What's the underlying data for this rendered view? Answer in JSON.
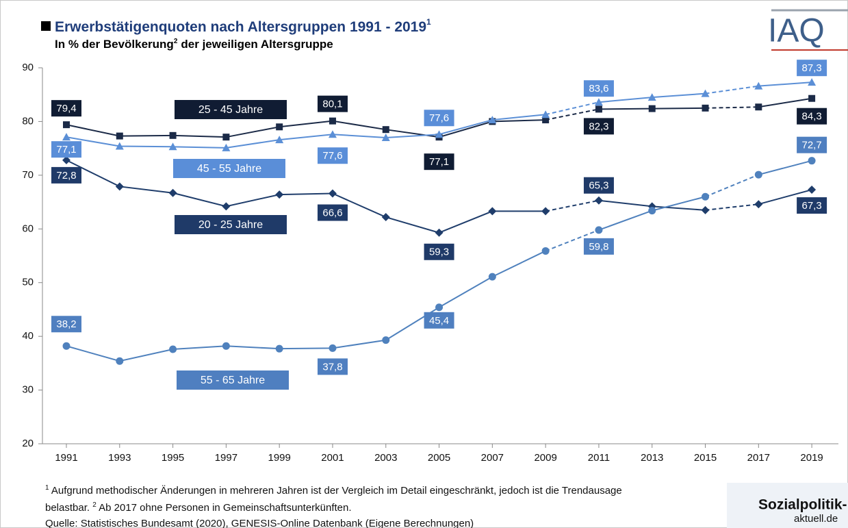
{
  "chart_data": {
    "type": "line",
    "title": "Erwerbstätigenquoten nach Altersgruppen 1991 - 2019",
    "title_sup": "1",
    "subtitle": [
      "In % der Bevölkerung",
      "2",
      "der jeweiligen Altersgruppe"
    ],
    "x": [
      1991,
      1993,
      1995,
      1997,
      1999,
      2001,
      2003,
      2005,
      2007,
      2009,
      2011,
      2013,
      2015,
      2017,
      2019
    ],
    "xlim": [
      1990.1,
      2020
    ],
    "xticks": [
      1991,
      1993,
      1995,
      1997,
      1999,
      2001,
      2003,
      2005,
      2007,
      2009,
      2011,
      2013,
      2015,
      2017,
      2019
    ],
    "ylim": [
      20,
      90
    ],
    "yticks": [
      20,
      30,
      40,
      50,
      60,
      70,
      80,
      90
    ],
    "grid": false,
    "dashed_segments": [
      9,
      12
    ],
    "series": [
      {
        "name": "25 - 45 Jahre",
        "color": "#1b2a47",
        "label_color": "#101c33",
        "marker": "square",
        "values": [
          79.4,
          77.3,
          77.4,
          77.1,
          79.0,
          80.1,
          78.5,
          77.1,
          80.0,
          80.3,
          82.3,
          82.4,
          82.5,
          82.7,
          84.3
        ],
        "value_labels": [
          "79,4",
          null,
          null,
          null,
          null,
          "80,1",
          null,
          "77,1",
          null,
          null,
          "82,3",
          null,
          null,
          null,
          "84,3"
        ]
      },
      {
        "name": "45 - 55 Jahre",
        "color": "#5b8fd6",
        "label_color": "#5a8ed8",
        "marker": "triangle",
        "values": [
          77.1,
          75.4,
          75.3,
          75.1,
          76.6,
          77.6,
          77.0,
          77.6,
          80.3,
          81.3,
          83.6,
          84.5,
          85.2,
          86.6,
          87.3
        ],
        "value_labels": [
          "77,1",
          null,
          null,
          null,
          null,
          "77,6",
          null,
          "77,6",
          null,
          null,
          "83,6",
          null,
          null,
          null,
          "87,3"
        ]
      },
      {
        "name": "20 - 25 Jahre",
        "color": "#1f3d6b",
        "label_color": "#1f3a68",
        "marker": "diamond",
        "values": [
          72.8,
          67.9,
          66.7,
          64.2,
          66.4,
          66.6,
          62.2,
          59.3,
          63.3,
          63.3,
          65.3,
          64.2,
          63.5,
          64.6,
          67.3
        ],
        "value_labels": [
          "72,8",
          null,
          null,
          null,
          null,
          "66,6",
          null,
          "59,3",
          null,
          null,
          "65,3",
          null,
          null,
          null,
          "67,3"
        ]
      },
      {
        "name": "55 - 65 Jahre",
        "color": "#4f81bd",
        "label_color": "#4f7fc0",
        "marker": "circle",
        "values": [
          38.2,
          35.4,
          37.6,
          38.2,
          37.7,
          37.8,
          39.3,
          45.4,
          51.1,
          55.9,
          59.8,
          63.4,
          66.0,
          70.1,
          72.7
        ],
        "value_labels": [
          "38,2",
          null,
          null,
          null,
          null,
          "37,8",
          null,
          "45,4",
          null,
          null,
          "59,8",
          null,
          null,
          null,
          "72,7"
        ]
      }
    ],
    "notes": [
      {
        "mark": "1",
        "text": "Aufgrund methodischer Änderungen in mehreren Jahren ist der Vergleich im Detail eingeschränkt, jedoch ist die Trendausage belastbar."
      },
      {
        "mark": "2",
        "text": "Ab 2017 ohne Personen in Gemeinschaftsunterkünften."
      }
    ],
    "source": "Quelle: Statistisches Bundesamt (2020), GENESIS-Online Datenbank (Eigene Berechnungen)",
    "logo_top": "IAQ",
    "logo_bottom": [
      "Sozialpolitik-",
      "aktuell.de"
    ]
  }
}
